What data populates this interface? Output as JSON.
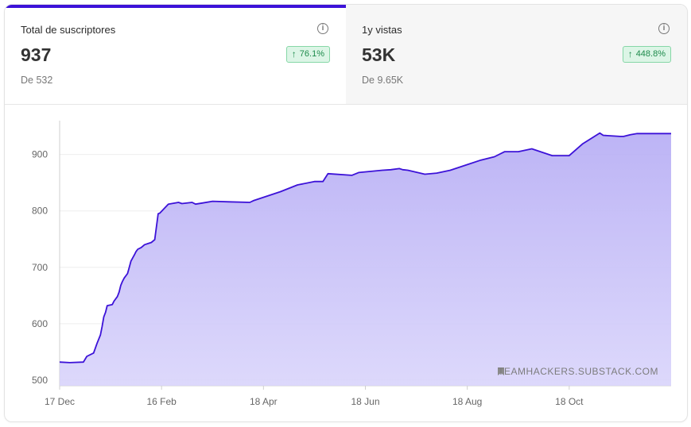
{
  "metrics": [
    {
      "label": "Total de suscriptores",
      "value": "937",
      "change": "76.1%",
      "change_direction": "up",
      "previous": "De 532",
      "active": true
    },
    {
      "label": "1y vistas",
      "value": "53K",
      "change": "448.8%",
      "change_direction": "up",
      "previous": "De 9.65K",
      "active": false
    }
  ],
  "icons": {
    "info": "info-circle-icon",
    "change": "arrow-up-icon",
    "watermark": "bookmark-icon"
  },
  "colors": {
    "accent": "#3c12d8",
    "fill": "#c7bff7",
    "positive": "#1d8a4b"
  },
  "chart_data": {
    "type": "area",
    "x_tick_labels": [
      "17 Dec",
      "16 Feb",
      "18 Apr",
      "18 Jun",
      "18 Aug",
      "18 Oct"
    ],
    "y_ticks": [
      500,
      600,
      700,
      800,
      900
    ],
    "ylim": [
      490,
      960
    ],
    "xlim_days": [
      0,
      360
    ],
    "watermark": "TEAMHACKERS.SUBSTACK.COM",
    "series": [
      {
        "x": [
          0,
          6,
          14,
          16,
          20,
          22,
          24,
          25,
          26,
          27,
          28,
          31,
          32,
          34,
          35,
          36,
          37,
          38,
          40,
          41,
          42,
          44,
          45,
          46,
          48,
          50,
          52,
          54,
          56,
          58,
          59,
          64,
          70,
          72,
          78,
          80,
          84,
          90,
          100,
          112,
          114,
          130,
          140,
          150,
          155,
          158,
          172,
          176,
          190,
          195,
          200,
          202,
          205,
          215,
          222,
          230,
          240,
          248,
          256,
          262,
          270,
          278,
          290,
          300,
          308,
          318,
          320,
          330,
          332,
          336,
          340,
          350,
          353,
          360
        ],
        "y": [
          532,
          531,
          532,
          542,
          548,
          565,
          580,
          595,
          612,
          620,
          632,
          634,
          640,
          648,
          656,
          668,
          675,
          681,
          689,
          700,
          711,
          722,
          728,
          732,
          735,
          740,
          742,
          744,
          749,
          795,
          796,
          812,
          815,
          813,
          815,
          812,
          814,
          817,
          816,
          815,
          818,
          834,
          846,
          852,
          852,
          866,
          863,
          868,
          872,
          873,
          875,
          873,
          872,
          865,
          867,
          872,
          882,
          890,
          896,
          905,
          905,
          910,
          898,
          898,
          919,
          938,
          934,
          932,
          932,
          935,
          937,
          937,
          937,
          937
        ]
      }
    ]
  }
}
